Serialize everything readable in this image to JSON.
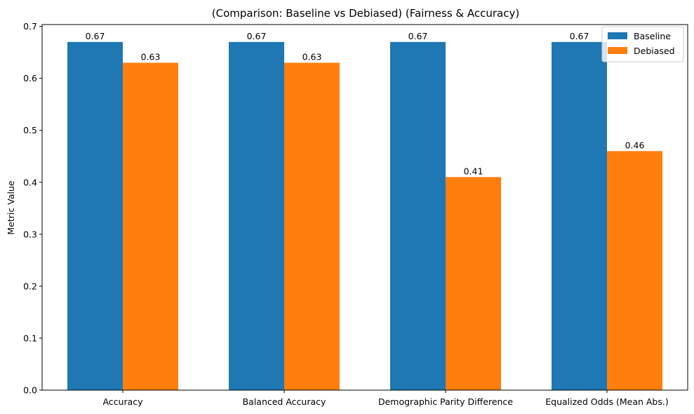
{
  "chart_data": {
    "type": "bar",
    "title": "(Comparison: Baseline vs Debiased) (Fairness & Accuracy)",
    "xlabel": "",
    "ylabel": "Metric Value",
    "categories": [
      "Accuracy",
      "Balanced Accuracy",
      "Demographic Parity Difference",
      "Equalized Odds (Mean Abs.)"
    ],
    "series": [
      {
        "name": "Baseline",
        "values": [
          0.67,
          0.67,
          0.67,
          0.67
        ],
        "color": "#1f77b4"
      },
      {
        "name": "Debiased",
        "values": [
          0.63,
          0.63,
          0.41,
          0.46
        ],
        "color": "#ff7f0e"
      }
    ],
    "ylim": [
      0,
      0.7035
    ],
    "yticks": [
      0.0,
      0.1,
      0.2,
      0.3,
      0.4,
      0.5,
      0.6,
      0.7
    ],
    "ytick_labels": [
      "0.0",
      "0.1",
      "0.2",
      "0.3",
      "0.4",
      "0.5",
      "0.6",
      "0.7"
    ],
    "data_labels": [
      [
        "0.67",
        "0.67",
        "0.67",
        "0.67"
      ],
      [
        "0.63",
        "0.63",
        "0.41",
        "0.46"
      ]
    ],
    "grid": false,
    "legend": "top-right"
  }
}
